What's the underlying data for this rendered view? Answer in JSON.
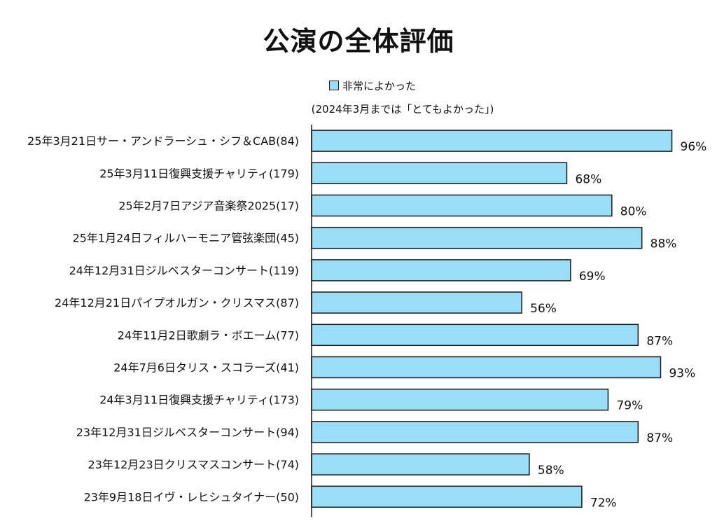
{
  "chart_data": {
    "type": "bar",
    "orientation": "horizontal",
    "title": "公演の全体評価",
    "legend": {
      "series_name": "非常によかった",
      "note": "(2024年3月までは「とてもよかった」)",
      "position": "top"
    },
    "categories": [
      "25年3月21日サー・アンドラーシュ・シフ＆CAB(84)",
      "25年3月11日復興支援チャリティ(179)",
      "25年2月7日アジア音楽祭2025(17)",
      "25年1月24日フィルハーモニア管弦楽団(45)",
      "24年12月31日ジルベスターコンサート(119)",
      "24年12月21日パイプオルガン・クリスマス(87)",
      "24年11月2日歌劇ラ・ボエーム(77)",
      "24年7月6日タリス・スコラーズ(41)",
      "24年3月11日復興支援チャリティ(173)",
      "23年12月31日ジルベスターコンサート(94)",
      "23年12月23日クリスマスコンサート(74)",
      "23年9月18日イヴ・レヒシュタイナー(50)"
    ],
    "series": [
      {
        "name": "非常によかった",
        "values": [
          96,
          68,
          80,
          88,
          69,
          56,
          87,
          93,
          79,
          87,
          58,
          72
        ],
        "labels": [
          "96%",
          "68%",
          "80%",
          "88%",
          "69%",
          "56%",
          "87%",
          "93%",
          "79%",
          "87%",
          "58%",
          "72%"
        ]
      }
    ],
    "xlim": [
      0,
      100
    ],
    "unit": "%",
    "grid": false,
    "colors": {
      "bar": "#99ddf7",
      "bar_border": "#1a1a1a",
      "axis": "#1a1a1a"
    }
  }
}
